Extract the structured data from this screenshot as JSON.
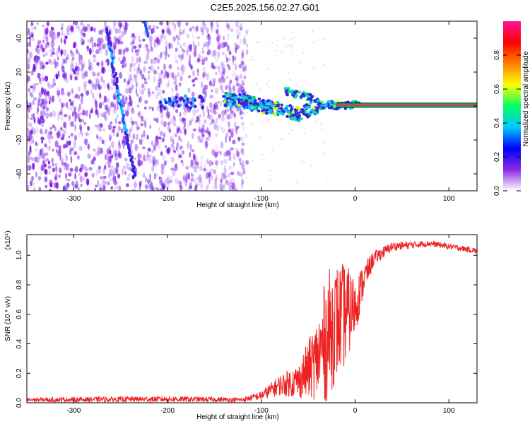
{
  "chart_data": [
    {
      "type": "heatmap",
      "title": "C2E5.2025.156.02.27.G01",
      "xlabel": "Height of straight line (km)",
      "ylabel": "Frequency (Hz)",
      "xlim": [
        -350,
        130
      ],
      "ylim": [
        -50,
        50
      ],
      "xticks": [
        -300,
        -200,
        -100,
        0,
        100
      ],
      "yticks": [
        -40,
        -20,
        0,
        20,
        40
      ],
      "grid": false,
      "colorbar": {
        "label": "Normalized spectral amplitude",
        "range": [
          0,
          1
        ],
        "ticks": [
          "0.0",
          "0.2",
          "0.4",
          "0.6",
          "0.8"
        ],
        "colors": [
          "#ffffff",
          "#8a2be2",
          "#0000ff",
          "#00c8ff",
          "#00ff64",
          "#ffff00",
          "#ff7f00",
          "#ff0000",
          "#ff1493"
        ]
      },
      "features": {
        "noise_region_x": [
          -350,
          -115
        ],
        "main_track": [
          {
            "x": -140,
            "y": 4
          },
          {
            "x": -120,
            "y": 3
          },
          {
            "x": -100,
            "y": 0
          },
          {
            "x": -80,
            "y": -2
          },
          {
            "x": -60,
            "y": -5
          },
          {
            "x": -45,
            "y": -1
          },
          {
            "x": -30,
            "y": 1
          },
          {
            "x": -15,
            "y": 0
          },
          {
            "x": 0,
            "y": 1
          },
          {
            "x": 20,
            "y": 0.5
          },
          {
            "x": 60,
            "y": 0.5
          },
          {
            "x": 130,
            "y": 0.5
          }
        ],
        "diagonal_streak": [
          {
            "x": -265,
            "y": 45
          },
          {
            "x": -235,
            "y": -42
          }
        ],
        "fragment_cluster": [
          {
            "x": -210,
            "y": 2
          },
          {
            "x": -160,
            "y": 4
          }
        ]
      }
    },
    {
      "type": "line",
      "title": "",
      "xlabel": "Height of straight line (km)",
      "ylabel": "SNR (10 * v/v)",
      "yscale_label": "(x10⁴)",
      "xlim": [
        -350,
        130
      ],
      "ylim": [
        0,
        1.14
      ],
      "xticks": [
        -300,
        -200,
        -100,
        0,
        100
      ],
      "yticks": [
        "0.0",
        "0.2",
        "0.4",
        "0.6",
        "0.8",
        "1.0"
      ],
      "grid": false,
      "series": [
        {
          "color": "#ee2222",
          "envelope": [
            {
              "x": -350,
              "mean": 0.02,
              "amp": 0.015
            },
            {
              "x": -200,
              "mean": 0.025,
              "amp": 0.02
            },
            {
              "x": -120,
              "mean": 0.02,
              "amp": 0.015
            },
            {
              "x": -100,
              "mean": 0.05,
              "amp": 0.03
            },
            {
              "x": -80,
              "mean": 0.12,
              "amp": 0.07
            },
            {
              "x": -60,
              "mean": 0.15,
              "amp": 0.12
            },
            {
              "x": -40,
              "mean": 0.3,
              "amp": 0.28
            },
            {
              "x": -30,
              "mean": 0.45,
              "amp": 0.45
            },
            {
              "x": -20,
              "mean": 0.55,
              "amp": 0.4
            },
            {
              "x": -10,
              "mean": 0.6,
              "amp": 0.35
            },
            {
              "x": 0,
              "mean": 0.65,
              "amp": 0.2
            },
            {
              "x": 10,
              "mean": 0.85,
              "amp": 0.1
            },
            {
              "x": 20,
              "mean": 0.98,
              "amp": 0.05
            },
            {
              "x": 40,
              "mean": 1.06,
              "amp": 0.03
            },
            {
              "x": 80,
              "mean": 1.08,
              "amp": 0.02
            },
            {
              "x": 130,
              "mean": 1.03,
              "amp": 0.02
            }
          ]
        }
      ]
    }
  ]
}
